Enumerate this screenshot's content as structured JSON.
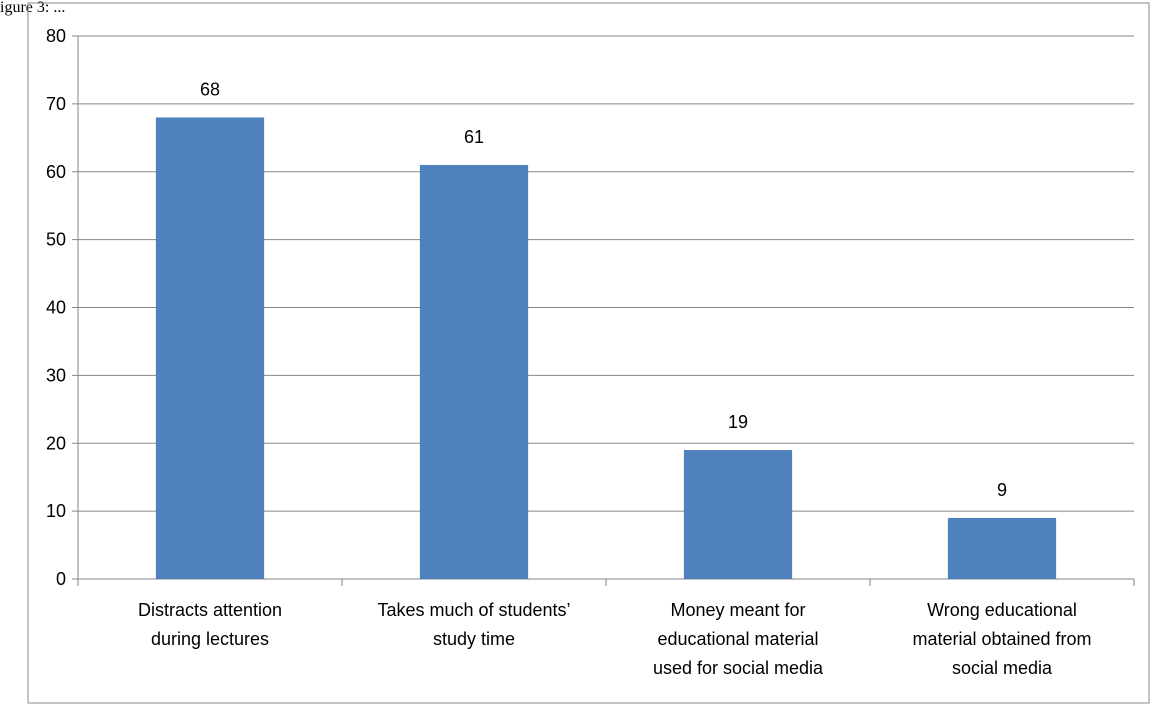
{
  "caption_fragment": "igure 3: ...",
  "chart_data": {
    "type": "bar",
    "title": "",
    "xlabel": "",
    "ylabel": "",
    "categories": [
      [
        "Distracts attention",
        "during lectures"
      ],
      [
        "Takes much of students’",
        "study time"
      ],
      [
        "Money meant for",
        "educational material",
        "used for social media"
      ],
      [
        "Wrong educational",
        "material obtained from",
        "social media"
      ]
    ],
    "values": [
      68,
      61,
      19,
      9
    ],
    "data_labels": [
      "68",
      "61",
      "19",
      "9"
    ],
    "ylim": [
      0,
      80
    ],
    "yticks": [
      0,
      10,
      20,
      30,
      40,
      50,
      60,
      70,
      80
    ],
    "grid": true,
    "legend": "none",
    "bar_color": "#4F81BD",
    "grid_color": "#868686"
  }
}
